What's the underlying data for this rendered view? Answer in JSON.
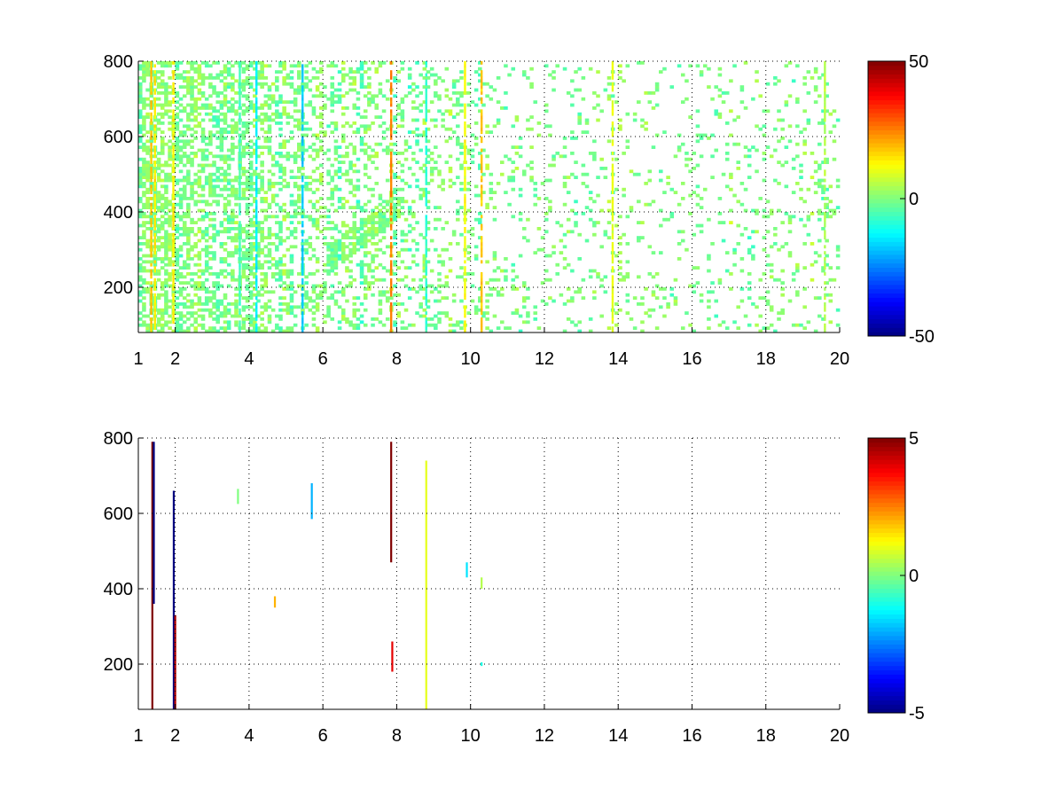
{
  "chart_data": [
    {
      "type": "heatmap",
      "title": "",
      "xlabel": "",
      "ylabel": "",
      "xlim": [
        1,
        20
      ],
      "ylim": [
        80,
        800
      ],
      "xticks": [
        1,
        2,
        4,
        6,
        8,
        10,
        12,
        14,
        16,
        18,
        20
      ],
      "yticks": [
        200,
        400,
        600,
        800
      ],
      "grid": true,
      "grid_style": "dotted",
      "colormap": "jet",
      "colorbar": {
        "clim": [
          -50,
          50
        ],
        "ticks": [
          50,
          0,
          -50
        ]
      },
      "missing_color": "#ffffff",
      "cell_size": {
        "dx": 0.1,
        "dy": 8
      },
      "value_range": [
        -25,
        25
      ],
      "dense_columns": [
        {
          "x": 1.35,
          "value": 18
        },
        {
          "x": 1.45,
          "value": 14
        },
        {
          "x": 1.95,
          "value": 14
        },
        {
          "x": 3.75,
          "value": -6
        },
        {
          "x": 4.2,
          "value": -14
        },
        {
          "x": 5.45,
          "value": -18
        },
        {
          "x": 7.85,
          "value": 25
        },
        {
          "x": 8.8,
          "value": -8
        },
        {
          "x": 9.85,
          "value": 12
        },
        {
          "x": 10.3,
          "value": 18
        },
        {
          "x": 13.85,
          "value": 10
        },
        {
          "x": 19.6,
          "value": 5
        }
      ],
      "density_profile": [
        {
          "x": 1,
          "density": 0.55
        },
        {
          "x": 4,
          "density": 0.45
        },
        {
          "x": 6,
          "density": 0.28
        },
        {
          "x": 8,
          "density": 0.22
        },
        {
          "x": 11,
          "density": 0.12
        },
        {
          "x": 16,
          "density": 0.08
        },
        {
          "x": 20,
          "density": 0.14
        }
      ]
    },
    {
      "type": "heatmap",
      "title": "",
      "xlabel": "",
      "ylabel": "",
      "xlim": [
        1,
        20
      ],
      "ylim": [
        80,
        800
      ],
      "xticks": [
        1,
        2,
        4,
        6,
        8,
        10,
        12,
        14,
        16,
        18,
        20
      ],
      "yticks": [
        200,
        400,
        600,
        800
      ],
      "grid": true,
      "grid_style": "dotted",
      "colormap": "jet",
      "colorbar": {
        "clim": [
          -5,
          5
        ],
        "ticks": [
          5,
          0,
          -5
        ]
      },
      "missing_color": "#ffffff",
      "segments": [
        {
          "x": 1.38,
          "y0": 80,
          "y1": 790,
          "value": 5
        },
        {
          "x": 1.42,
          "y0": 360,
          "y1": 790,
          "value": -5
        },
        {
          "x": 1.96,
          "y0": 80,
          "y1": 660,
          "value": -5
        },
        {
          "x": 2.0,
          "y0": 80,
          "y1": 330,
          "value": 4.5
        },
        {
          "x": 3.7,
          "y0": 625,
          "y1": 665,
          "value": 0
        },
        {
          "x": 4.7,
          "y0": 350,
          "y1": 380,
          "value": 2
        },
        {
          "x": 5.7,
          "y0": 585,
          "y1": 680,
          "value": -2
        },
        {
          "x": 7.85,
          "y0": 470,
          "y1": 790,
          "value": 5
        },
        {
          "x": 7.88,
          "y0": 180,
          "y1": 260,
          "value": 4
        },
        {
          "x": 8.8,
          "y0": 80,
          "y1": 740,
          "value": 1
        },
        {
          "x": 9.9,
          "y0": 430,
          "y1": 470,
          "value": -1.5
        },
        {
          "x": 10.3,
          "y0": 400,
          "y1": 430,
          "value": 0.5
        },
        {
          "x": 10.3,
          "y0": 195,
          "y1": 205,
          "value": -1
        }
      ]
    }
  ]
}
